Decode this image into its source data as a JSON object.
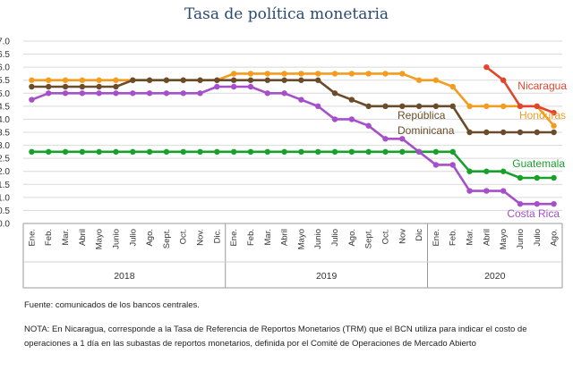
{
  "title": "Tasa de política monetaria",
  "source": "Fuente: comunicados de los bancos centrales.",
  "note": "NOTA: En Nicaragua, corresponde a la Tasa de Referencia de Reportos Monetarios (TRM) que el BCN utiliza para indicar el costo de operaciones a 1 día en las subastas de reportos monetarios, definida por el Comité de Operaciones de Mercado Abierto",
  "chart_data": {
    "type": "line",
    "title": "Tasa de política monetaria",
    "ylim": [
      0,
      7
    ],
    "yticks": [
      "0.0",
      "0.5",
      "1.0",
      "1.5",
      "2.0",
      "2.5",
      "3.0",
      "3.5",
      "4.0",
      "4.5",
      "5.0",
      "5.5",
      "6.0",
      "6.5",
      "7.0"
    ],
    "x": [
      "Ene.",
      "Feb.",
      "Mar.",
      "Abril",
      "Mayo",
      "Junio",
      "Julio",
      "Ago.",
      "Sept.",
      "Oct.",
      "Nov.",
      "Dic.",
      "Ene.",
      "Feb.",
      "Mar.",
      "Abril",
      "Mayo",
      "Junio",
      "Julio",
      "Ago.",
      "Sept.",
      "Oct.",
      "Nov",
      "Dic",
      "Ene.",
      "Feb.",
      "Mar.",
      "Abril",
      "Mayo",
      "Junio",
      "Julio",
      "Ago."
    ],
    "years": [
      {
        "label": "2018",
        "start": 0,
        "end": 11
      },
      {
        "label": "2019",
        "start": 12,
        "end": 23
      },
      {
        "label": "2020",
        "start": 24,
        "end": 31
      }
    ],
    "grid": true,
    "series": [
      {
        "name": "Honduras",
        "color": "#f39c1f",
        "label_color": "#f39c1f",
        "values": [
          5.5,
          5.5,
          5.5,
          5.5,
          5.5,
          5.5,
          5.5,
          5.5,
          5.5,
          5.5,
          5.5,
          5.5,
          5.75,
          5.75,
          5.75,
          5.75,
          5.75,
          5.75,
          5.75,
          5.75,
          5.75,
          5.75,
          5.75,
          5.5,
          5.5,
          5.25,
          4.5,
          4.5,
          4.5,
          4.5,
          4.5,
          3.75
        ]
      },
      {
        "name": "República Dominicana",
        "label_lines": [
          "República",
          "Dominicana"
        ],
        "color": "#6b4c2a",
        "label_color": "#6b4c2a",
        "values": [
          5.25,
          5.25,
          5.25,
          5.25,
          5.25,
          5.25,
          5.5,
          5.5,
          5.5,
          5.5,
          5.5,
          5.5,
          5.5,
          5.5,
          5.5,
          5.5,
          5.5,
          5.5,
          5.0,
          4.75,
          4.5,
          4.5,
          4.5,
          4.5,
          4.5,
          4.5,
          3.5,
          3.5,
          3.5,
          3.5,
          3.5,
          3.5
        ]
      },
      {
        "name": "Guatemala",
        "color": "#18a02c",
        "label_color": "#18a02c",
        "values": [
          2.75,
          2.75,
          2.75,
          2.75,
          2.75,
          2.75,
          2.75,
          2.75,
          2.75,
          2.75,
          2.75,
          2.75,
          2.75,
          2.75,
          2.75,
          2.75,
          2.75,
          2.75,
          2.75,
          2.75,
          2.75,
          2.75,
          2.75,
          2.75,
          2.75,
          2.75,
          2.0,
          2.0,
          2.0,
          1.75,
          1.75,
          1.75
        ]
      },
      {
        "name": "Costa Rica",
        "color": "#a54fc9",
        "label_color": "#a54fc9",
        "values": [
          4.75,
          5.0,
          5.0,
          5.0,
          5.0,
          5.0,
          5.0,
          5.0,
          5.0,
          5.0,
          5.0,
          5.25,
          5.25,
          5.25,
          5.0,
          5.0,
          4.75,
          4.5,
          4.0,
          4.0,
          3.75,
          3.25,
          3.25,
          2.75,
          2.25,
          2.25,
          1.25,
          1.25,
          1.25,
          0.75,
          0.75,
          0.75
        ]
      },
      {
        "name": "Nicaragua",
        "color": "#e0462c",
        "label_color": "#e0462c",
        "values": [
          null,
          null,
          null,
          null,
          null,
          null,
          null,
          null,
          null,
          null,
          null,
          null,
          null,
          null,
          null,
          null,
          null,
          null,
          null,
          null,
          null,
          null,
          null,
          null,
          null,
          null,
          null,
          6.0,
          5.5,
          4.5,
          4.5,
          4.25
        ]
      }
    ]
  }
}
